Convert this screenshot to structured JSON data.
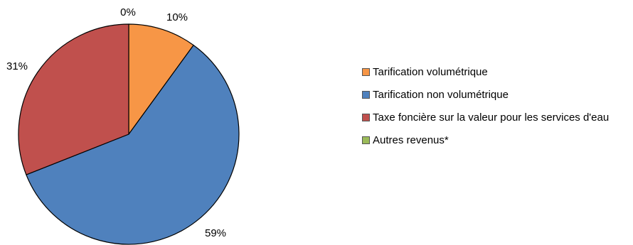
{
  "chart_data": {
    "type": "pie",
    "title": "",
    "legend_position": "right",
    "start": "12 o'clock, clockwise",
    "slices": [
      {
        "label": "Tarification volumétrique",
        "value": 10,
        "value_label": "10%",
        "color": "#F79646"
      },
      {
        "label": "Tarification non volumétrique",
        "value": 59,
        "value_label": "59%",
        "color": "#4F81BD"
      },
      {
        "label": "Taxe foncière sur la valeur pour les services d'eau",
        "value": 31,
        "value_label": "31%",
        "color": "#C0504D"
      },
      {
        "label": "Autres revenus*",
        "value": 0,
        "value_label": "0%",
        "color": "#9BBB59"
      }
    ]
  }
}
